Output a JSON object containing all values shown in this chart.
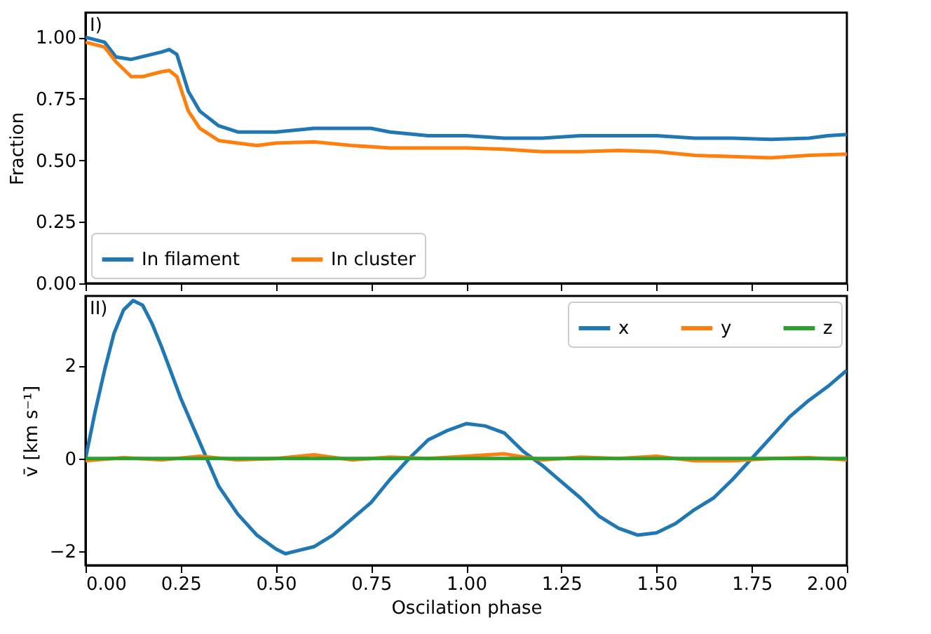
{
  "chart_data": [
    {
      "type": "line",
      "ylabel": "Fraction",
      "annotations": [
        "I)"
      ],
      "legend": "bottom left",
      "tick_labels": "y",
      "xlim": [
        0,
        2
      ],
      "xticks": [
        0,
        0.25,
        0.5,
        0.75,
        1,
        1.25,
        1.5,
        1.75,
        2
      ],
      "ylim": [
        0,
        1.1
      ],
      "yticks": [
        {
          "value": 0,
          "label": "0.00"
        },
        {
          "value": 0.25,
          "label": "0.25"
        },
        {
          "value": 0.5,
          "label": "0.50"
        },
        {
          "value": 0.75,
          "label": "0.75"
        },
        {
          "value": 1,
          "label": "1.00"
        }
      ],
      "series": [
        {
          "name": "In filament",
          "color": "#1f77b4",
          "x": [
            0,
            0.05,
            0.08,
            0.12,
            0.2,
            0.22,
            0.24,
            0.27,
            0.3,
            0.35,
            0.4,
            0.5,
            0.6,
            0.7,
            0.75,
            0.8,
            0.9,
            1.0,
            1.1,
            1.2,
            1.3,
            1.4,
            1.5,
            1.6,
            1.7,
            1.8,
            1.9,
            1.95,
            2.0
          ],
          "values": [
            1.0,
            0.98,
            0.92,
            0.91,
            0.94,
            0.95,
            0.93,
            0.78,
            0.7,
            0.64,
            0.615,
            0.615,
            0.63,
            0.63,
            0.63,
            0.615,
            0.6,
            0.6,
            0.59,
            0.59,
            0.6,
            0.6,
            0.6,
            0.59,
            0.59,
            0.585,
            0.59,
            0.6,
            0.605
          ]
        },
        {
          "name": "In cluster",
          "color": "#ff7f0e",
          "x": [
            0,
            0.05,
            0.08,
            0.12,
            0.15,
            0.2,
            0.22,
            0.24,
            0.27,
            0.3,
            0.35,
            0.4,
            0.45,
            0.5,
            0.6,
            0.7,
            0.8,
            0.9,
            1.0,
            1.1,
            1.2,
            1.3,
            1.4,
            1.5,
            1.6,
            1.7,
            1.8,
            1.9,
            2.0
          ],
          "values": [
            0.98,
            0.96,
            0.9,
            0.84,
            0.84,
            0.86,
            0.865,
            0.84,
            0.7,
            0.63,
            0.58,
            0.57,
            0.56,
            0.57,
            0.575,
            0.56,
            0.55,
            0.55,
            0.55,
            0.545,
            0.535,
            0.535,
            0.54,
            0.535,
            0.52,
            0.515,
            0.51,
            0.52,
            0.525
          ]
        }
      ]
    },
    {
      "type": "line",
      "xlabel": "Oscilation phase",
      "ylabel": "v̄ [km s⁻¹]",
      "annotations": [
        "II)"
      ],
      "legend": "top right",
      "xlim": [
        0,
        2
      ],
      "xticks": [
        {
          "value": 0,
          "label": "0.00"
        },
        {
          "value": 0.25,
          "label": "0.25"
        },
        {
          "value": 0.5,
          "label": "0.50"
        },
        {
          "value": 0.75,
          "label": "0.75"
        },
        {
          "value": 1,
          "label": "1.00"
        },
        {
          "value": 1.25,
          "label": "1.25"
        },
        {
          "value": 1.5,
          "label": "1.50"
        },
        {
          "value": 1.75,
          "label": "1.75"
        },
        {
          "value": 2,
          "label": "2.00"
        }
      ],
      "ylim": [
        -2.3,
        3.5
      ],
      "yticks": [
        {
          "value": -2,
          "label": "−2"
        },
        0,
        2
      ],
      "series": [
        {
          "name": "x",
          "color": "#1f77b4",
          "x": [
            0,
            0.025,
            0.05,
            0.075,
            0.1,
            0.125,
            0.15,
            0.175,
            0.2,
            0.25,
            0.3,
            0.35,
            0.4,
            0.45,
            0.5,
            0.525,
            0.55,
            0.6,
            0.65,
            0.7,
            0.75,
            0.8,
            0.85,
            0.9,
            0.95,
            1.0,
            1.05,
            1.1,
            1.15,
            1.2,
            1.25,
            1.3,
            1.35,
            1.4,
            1.45,
            1.5,
            1.55,
            1.6,
            1.65,
            1.7,
            1.75,
            1.8,
            1.85,
            1.9,
            1.95,
            2.0
          ],
          "values": [
            0,
            1.0,
            1.9,
            2.7,
            3.2,
            3.4,
            3.3,
            2.9,
            2.4,
            1.3,
            0.35,
            -0.6,
            -1.2,
            -1.65,
            -1.95,
            -2.05,
            -2.0,
            -1.9,
            -1.65,
            -1.3,
            -0.95,
            -0.45,
            0.0,
            0.4,
            0.6,
            0.75,
            0.7,
            0.55,
            0.15,
            -0.15,
            -0.5,
            -0.85,
            -1.25,
            -1.5,
            -1.65,
            -1.6,
            -1.4,
            -1.1,
            -0.85,
            -0.45,
            0.0,
            0.45,
            0.9,
            1.25,
            1.55,
            1.9
          ]
        },
        {
          "name": "y",
          "color": "#ff7f0e",
          "x": [
            0,
            0.1,
            0.2,
            0.3,
            0.4,
            0.5,
            0.6,
            0.7,
            0.8,
            0.9,
            1.0,
            1.1,
            1.2,
            1.3,
            1.4,
            1.5,
            1.6,
            1.7,
            1.8,
            1.9,
            2.0
          ],
          "values": [
            -0.05,
            0.02,
            -0.03,
            0.05,
            -0.03,
            0.0,
            0.08,
            -0.03,
            0.03,
            0.0,
            0.05,
            0.1,
            -0.03,
            0.03,
            0.0,
            0.05,
            -0.05,
            -0.05,
            0.0,
            0.02,
            -0.03
          ]
        },
        {
          "name": "z",
          "color": "#2ca02c",
          "x": [
            0,
            2.0
          ],
          "values": [
            0,
            0
          ]
        }
      ]
    }
  ]
}
